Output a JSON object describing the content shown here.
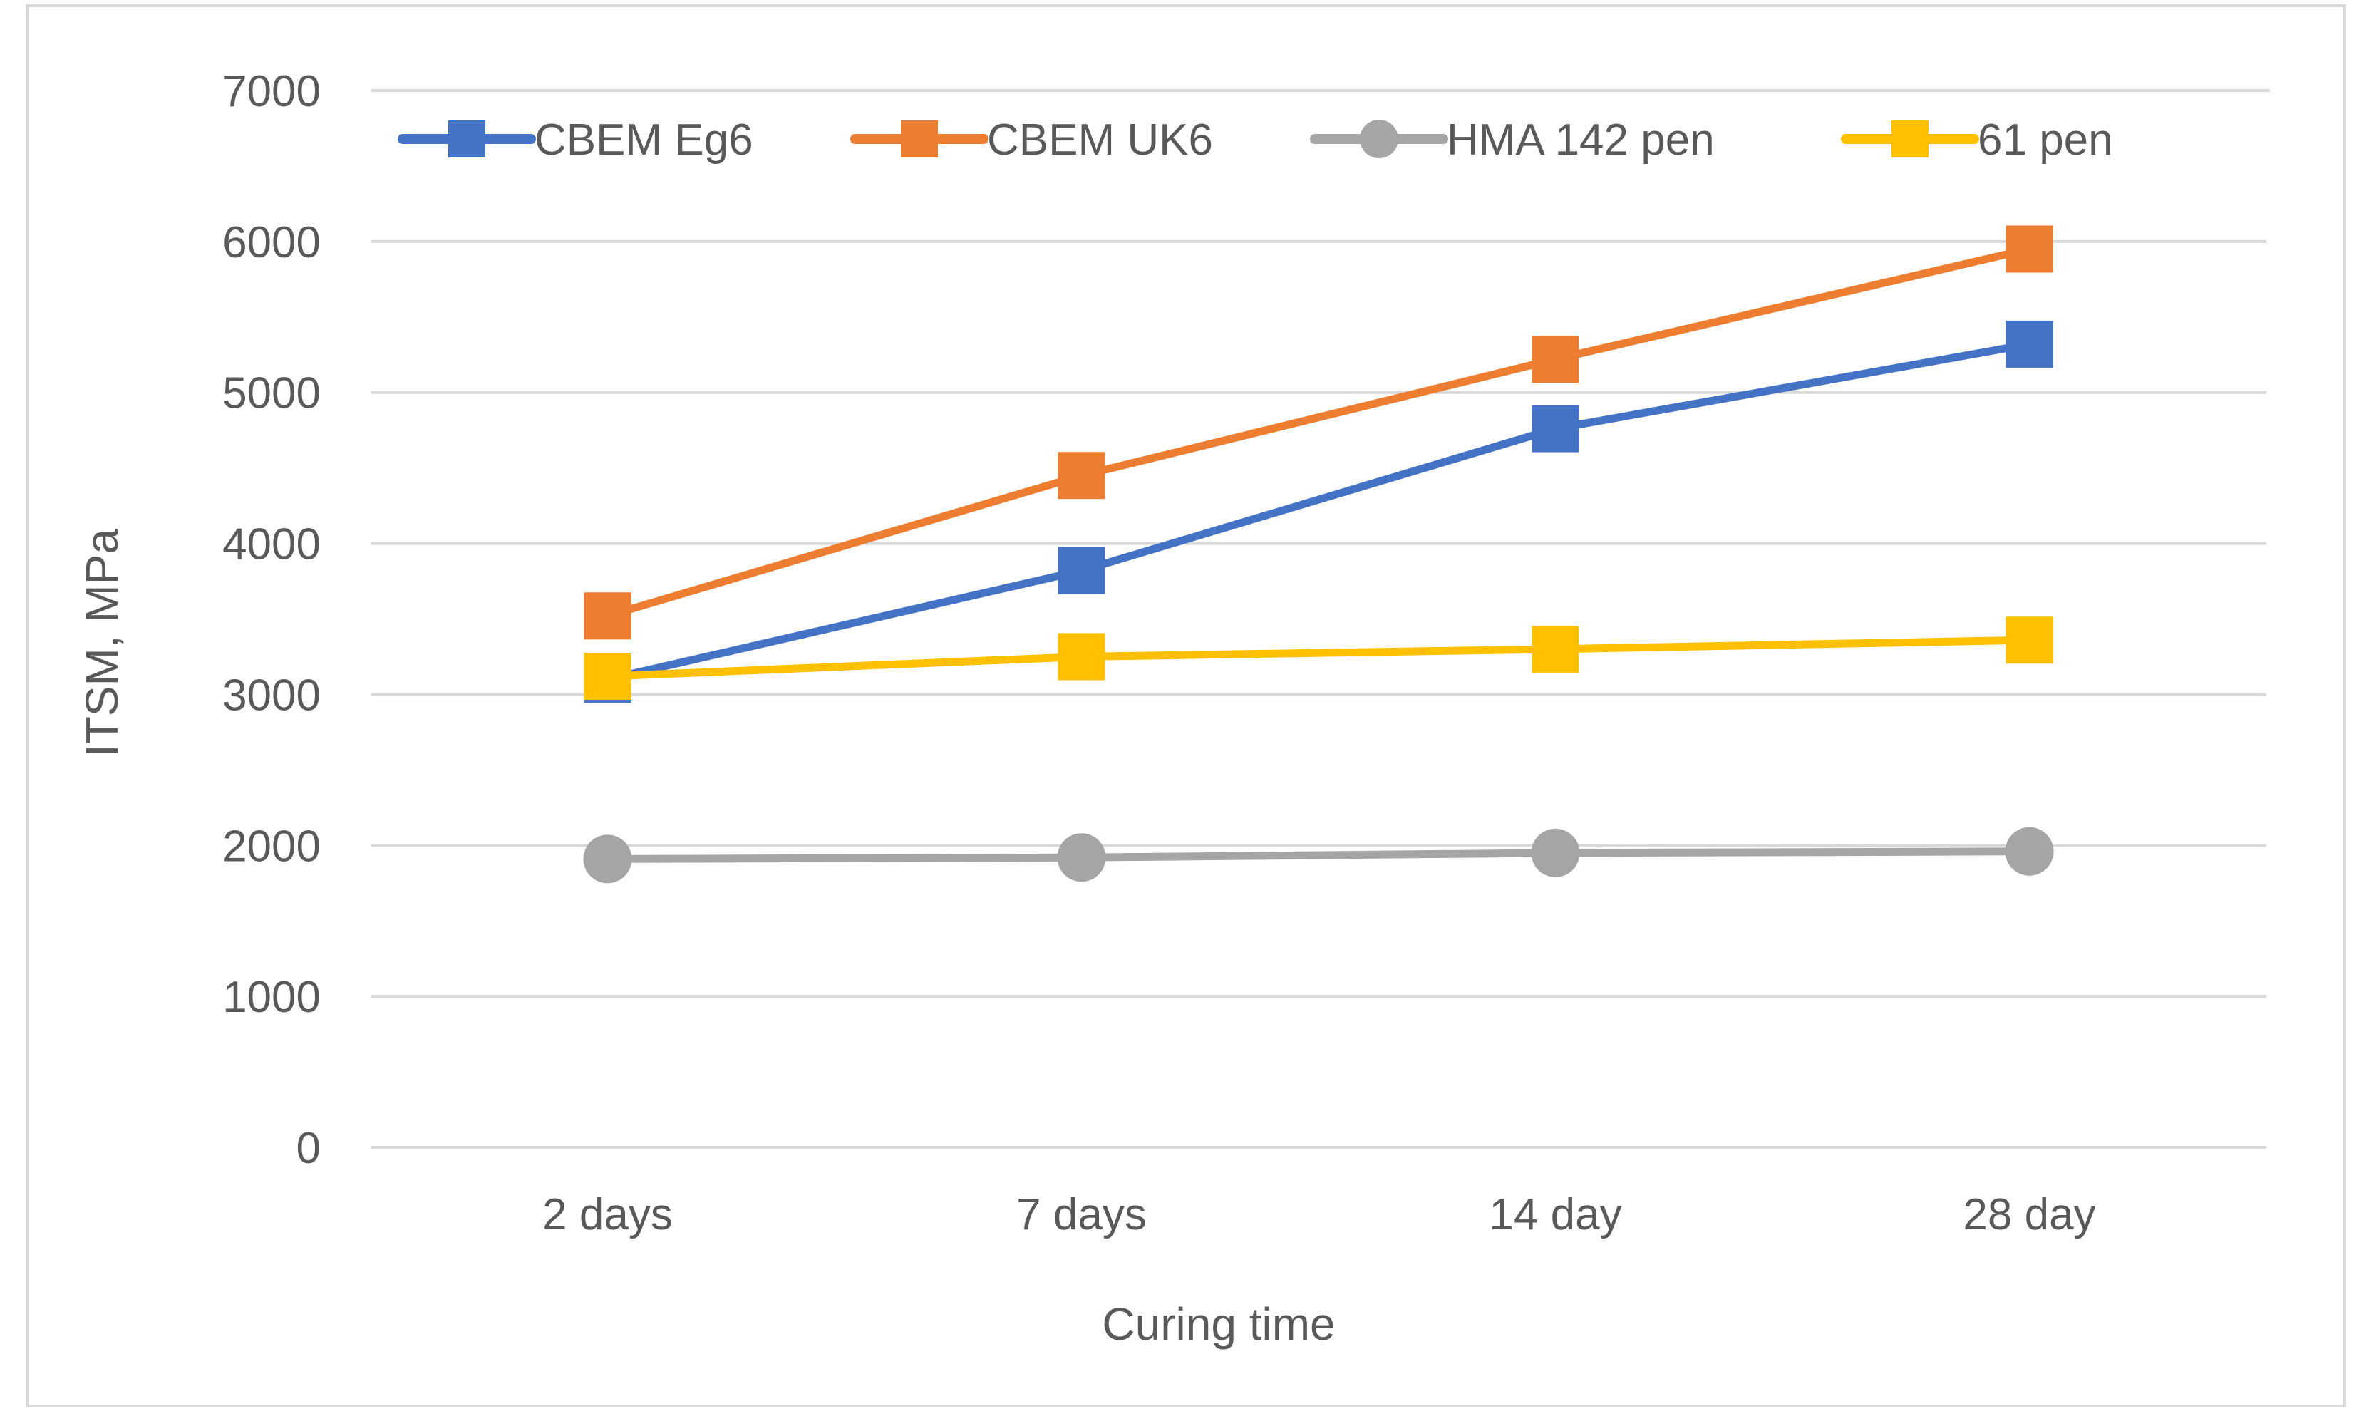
{
  "chart_data": {
    "type": "line",
    "title": "",
    "xlabel": "Curing time",
    "ylabel": "ITSM, MPa",
    "categories": [
      "2 days",
      "7 days",
      "14 day",
      "28 day"
    ],
    "ylim": [
      0,
      7000
    ],
    "yticks": [
      0,
      1000,
      2000,
      3000,
      4000,
      5000,
      6000,
      7000
    ],
    "grid": true,
    "legend_position": "top",
    "series": [
      {
        "name": "CBEM Eg6",
        "color": "#4472C4",
        "marker": "square",
        "values": [
          3100,
          3820,
          4760,
          5320
        ]
      },
      {
        "name": "CBEM UK6",
        "color": "#ED7D31",
        "marker": "square",
        "values": [
          3520,
          4450,
          5220,
          5950
        ]
      },
      {
        "name": "HMA 142 pen",
        "color": "#A5A5A5",
        "marker": "circle",
        "values": [
          1910,
          1920,
          1950,
          1960
        ]
      },
      {
        "name": "61 pen",
        "color": "#FFC000",
        "marker": "square",
        "values": [
          3120,
          3250,
          3300,
          3360
        ]
      }
    ]
  }
}
